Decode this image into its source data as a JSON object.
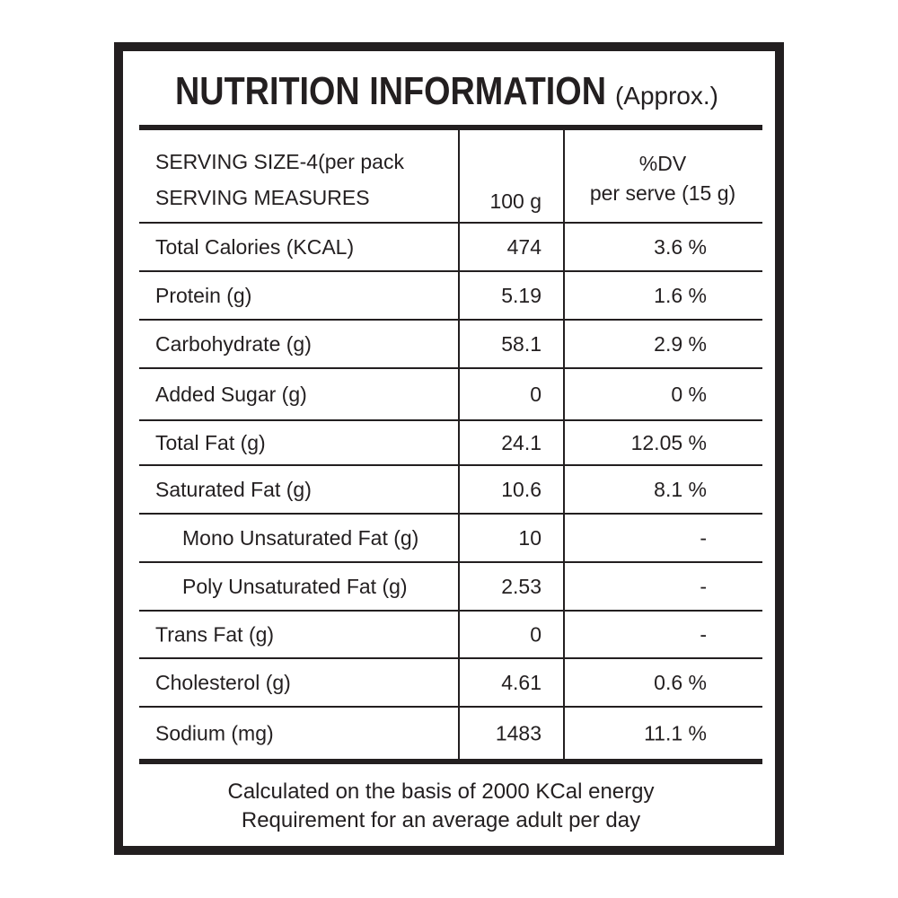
{
  "title": "NUTRITION INFORMATION",
  "title_note": "(Approx.)",
  "table": {
    "header": {
      "label_lines": [
        "SERVING SIZE-4(per pack",
        "SERVING MEASURES"
      ],
      "amount": "100 g",
      "dv_lines": [
        "%DV",
        "per serve (15 g)"
      ]
    },
    "rows": [
      [
        "Total Calories (KCAL)",
        "474",
        "3.6 %"
      ],
      [
        "Protein (g)",
        "5.19",
        "1.6 %"
      ],
      [
        "Carbohydrate (g)",
        "58.1",
        "2.9 %"
      ],
      [
        "Added Sugar (g)",
        "0",
        "0 %"
      ],
      [
        "Total Fat (g)",
        "24.1",
        "12.05 %"
      ],
      [
        "Saturated Fat (g)",
        "10.6",
        "8.1 %"
      ],
      [
        "Mono Unsaturated Fat (g)",
        "10",
        "-"
      ],
      [
        "Poly Unsaturated Fat (g)",
        "2.53",
        "-"
      ],
      [
        "Trans Fat (g)",
        "0",
        "-"
      ],
      [
        "Cholesterol (g)",
        "4.61",
        "0.6 %"
      ],
      [
        "Sodium (mg)",
        "1483",
        "11.1 %"
      ]
    ]
  },
  "footer": [
    "Calculated on the basis of 2000 KCal energy",
    "Requirement for an average adult per day"
  ]
}
